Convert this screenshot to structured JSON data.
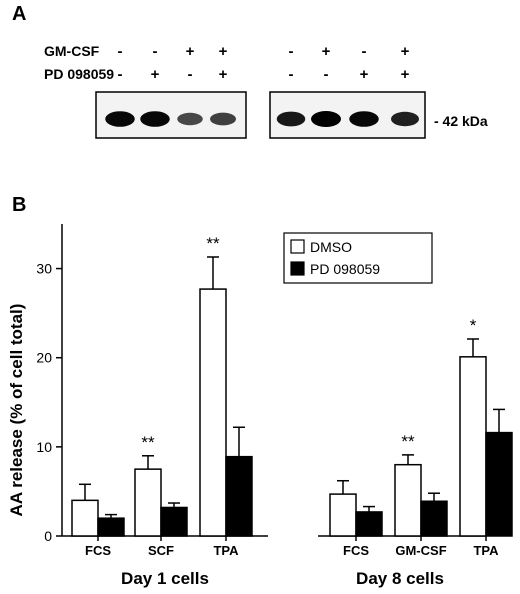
{
  "panel_a": {
    "letter": "A",
    "row_labels": [
      "GM-CSF",
      "PD 098059"
    ],
    "lanes_left": [
      {
        "gmcsf": "-",
        "pd": "-"
      },
      {
        "gmcsf": "-",
        "pd": "+"
      },
      {
        "gmcsf": "+",
        "pd": "-"
      },
      {
        "gmcsf": "+",
        "pd": "+"
      }
    ],
    "lanes_right": [
      {
        "gmcsf": "-",
        "pd": "-"
      },
      {
        "gmcsf": "+",
        "pd": "-"
      },
      {
        "gmcsf": "-",
        "pd": "+"
      },
      {
        "gmcsf": "+",
        "pd": "+"
      }
    ],
    "band_intensity_left": [
      0.95,
      0.95,
      0.55,
      0.6
    ],
    "band_intensity_right": [
      0.85,
      1.0,
      0.95,
      0.8
    ],
    "marker_label": "- 42 kDa"
  },
  "chart_data": {
    "panel_letter": "B",
    "type": "bar",
    "ylabel": "AA release (% of cell total)",
    "ylim": [
      0,
      35
    ],
    "yticks": [
      0,
      10,
      20,
      30
    ],
    "groups": [
      {
        "name": "Day 1 cells",
        "categories": [
          "FCS",
          "SCF",
          "TPA"
        ]
      },
      {
        "name": "Day 8 cells",
        "categories": [
          "FCS",
          "GM-CSF",
          "TPA"
        ]
      }
    ],
    "series": [
      {
        "name": "DMSO",
        "color": "#ffffff",
        "values": [
          4.0,
          7.5,
          27.7,
          4.7,
          8.0,
          20.1
        ],
        "errors": [
          1.8,
          1.5,
          3.6,
          1.5,
          1.1,
          2.0
        ]
      },
      {
        "name": "PD 098059",
        "color": "#000000",
        "values": [
          2.0,
          3.2,
          8.9,
          2.7,
          3.9,
          11.6
        ],
        "errors": [
          0.4,
          0.5,
          3.3,
          0.6,
          0.9,
          2.6
        ]
      }
    ],
    "significance": [
      "",
      "**",
      "**",
      "",
      "**",
      "*"
    ],
    "legend_position": "top-right"
  }
}
